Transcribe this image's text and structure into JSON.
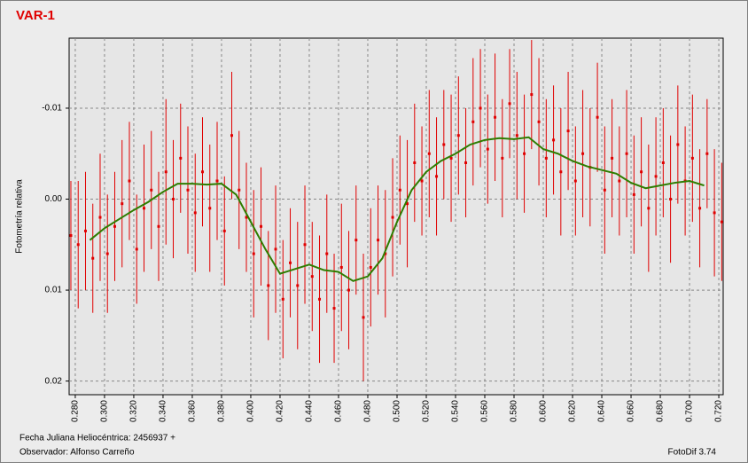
{
  "chart_data": {
    "type": "scatter",
    "title": "VAR-1",
    "y_label": "Fotometría relativa",
    "color": "#e00000",
    "grid": true,
    "x": [
      0.277,
      0.282,
      0.287,
      0.292,
      0.297,
      0.302,
      0.307,
      0.312,
      0.317,
      0.322,
      0.327,
      0.332,
      0.337,
      0.342,
      0.347,
      0.352,
      0.357,
      0.362,
      0.367,
      0.372,
      0.377,
      0.382,
      0.387,
      0.392,
      0.397,
      0.402,
      0.407,
      0.412,
      0.417,
      0.422,
      0.427,
      0.432,
      0.437,
      0.442,
      0.447,
      0.452,
      0.457,
      0.462,
      0.467,
      0.472,
      0.477,
      0.482,
      0.487,
      0.492,
      0.497,
      0.502,
      0.507,
      0.512,
      0.517,
      0.522,
      0.527,
      0.532,
      0.537,
      0.542,
      0.547,
      0.552,
      0.557,
      0.562,
      0.567,
      0.572,
      0.577,
      0.582,
      0.587,
      0.592,
      0.597,
      0.602,
      0.607,
      0.612,
      0.617,
      0.622,
      0.627,
      0.632,
      0.637,
      0.642,
      0.647,
      0.652,
      0.657,
      0.662,
      0.667,
      0.672,
      0.677,
      0.682,
      0.687,
      0.692,
      0.697,
      0.702,
      0.707,
      0.712,
      0.717,
      0.722
    ],
    "values": [
      0.004,
      0.005,
      0.0035,
      0.0065,
      0.002,
      0.006,
      0.003,
      0.0005,
      -0.002,
      0.0055,
      0.001,
      -0.001,
      0.003,
      -0.003,
      0.0,
      -0.0045,
      -0.001,
      0.0015,
      -0.003,
      0.001,
      -0.002,
      0.0035,
      -0.007,
      -0.001,
      0.002,
      0.006,
      0.003,
      0.0095,
      0.0055,
      0.011,
      0.007,
      0.0095,
      0.005,
      0.0085,
      0.011,
      0.006,
      0.012,
      0.0075,
      0.01,
      0.0045,
      0.013,
      0.0075,
      0.0045,
      0.006,
      0.002,
      -0.001,
      0.0005,
      -0.004,
      -0.002,
      -0.005,
      -0.0025,
      -0.006,
      -0.0045,
      -0.007,
      -0.004,
      -0.0085,
      -0.01,
      -0.0055,
      -0.009,
      -0.0045,
      -0.0105,
      -0.007,
      -0.005,
      -0.0115,
      -0.0085,
      -0.0045,
      -0.0065,
      -0.003,
      -0.0075,
      -0.002,
      -0.005,
      -0.0035,
      -0.009,
      -0.001,
      -0.0045,
      -0.002,
      -0.005,
      -0.0005,
      -0.003,
      0.001,
      -0.0025,
      -0.004,
      0.0,
      -0.006,
      -0.002,
      -0.0045,
      0.001,
      -0.005,
      0.0015,
      0.0025
    ],
    "errors": [
      0.006,
      0.007,
      0.0065,
      0.006,
      0.007,
      0.0065,
      0.006,
      0.007,
      0.0065,
      0.006,
      0.007,
      0.0065,
      0.006,
      0.008,
      0.0065,
      0.006,
      0.007,
      0.0065,
      0.006,
      0.007,
      0.0065,
      0.006,
      0.007,
      0.0065,
      0.006,
      0.007,
      0.0065,
      0.006,
      0.007,
      0.0065,
      0.006,
      0.007,
      0.0065,
      0.006,
      0.007,
      0.0065,
      0.006,
      0.007,
      0.0065,
      0.006,
      0.007,
      0.0065,
      0.006,
      0.007,
      0.0065,
      0.006,
      0.007,
      0.0065,
      0.006,
      0.007,
      0.0065,
      0.006,
      0.007,
      0.0065,
      0.006,
      0.007,
      0.0065,
      0.006,
      0.007,
      0.0065,
      0.006,
      0.007,
      0.0065,
      0.006,
      0.007,
      0.0065,
      0.006,
      0.007,
      0.0065,
      0.006,
      0.007,
      0.0065,
      0.006,
      0.007,
      0.0065,
      0.006,
      0.007,
      0.0065,
      0.006,
      0.007,
      0.0065,
      0.006,
      0.007,
      0.0065,
      0.006,
      0.007,
      0.0065,
      0.006,
      0.007,
      0.0065
    ],
    "line": {
      "color": "#2e7d00",
      "x": [
        0.29,
        0.3,
        0.31,
        0.32,
        0.33,
        0.34,
        0.35,
        0.36,
        0.37,
        0.38,
        0.39,
        0.4,
        0.41,
        0.42,
        0.43,
        0.44,
        0.45,
        0.46,
        0.47,
        0.48,
        0.49,
        0.5,
        0.51,
        0.52,
        0.53,
        0.54,
        0.55,
        0.56,
        0.57,
        0.58,
        0.59,
        0.6,
        0.61,
        0.62,
        0.63,
        0.64,
        0.65,
        0.66,
        0.67,
        0.68,
        0.69,
        0.7,
        0.71
      ],
      "values": [
        0.0045,
        0.0032,
        0.0022,
        0.0012,
        0.0003,
        -0.0008,
        -0.0017,
        -0.0017,
        -0.0016,
        -0.0017,
        -0.0005,
        0.0025,
        0.0055,
        0.0082,
        0.0077,
        0.0072,
        0.0078,
        0.008,
        0.009,
        0.0085,
        0.0065,
        0.0025,
        -0.001,
        -0.003,
        -0.0042,
        -0.005,
        -0.006,
        -0.0065,
        -0.0067,
        -0.0066,
        -0.0068,
        -0.0055,
        -0.005,
        -0.0042,
        -0.0036,
        -0.0032,
        -0.0028,
        -0.0018,
        -0.0012,
        -0.0015,
        -0.0018,
        -0.002,
        -0.0015
      ]
    },
    "xlim": [
      0.2758,
      0.723
    ],
    "ylim": [
      0.0215,
      -0.0177
    ],
    "xticks": [
      {
        "value": 0.28,
        "label": "0.280"
      },
      {
        "value": 0.3,
        "label": "0.300"
      },
      {
        "value": 0.32,
        "label": "0.320"
      },
      {
        "value": 0.34,
        "label": "0.340"
      },
      {
        "value": 0.36,
        "label": "0.360"
      },
      {
        "value": 0.38,
        "label": "0.380"
      },
      {
        "value": 0.4,
        "label": "0.400"
      },
      {
        "value": 0.42,
        "label": "0.420"
      },
      {
        "value": 0.44,
        "label": "0.440"
      },
      {
        "value": 0.46,
        "label": "0.460"
      },
      {
        "value": 0.48,
        "label": "0.480"
      },
      {
        "value": 0.5,
        "label": "0.500"
      },
      {
        "value": 0.52,
        "label": "0.520"
      },
      {
        "value": 0.54,
        "label": "0.540"
      },
      {
        "value": 0.56,
        "label": "0.560"
      },
      {
        "value": 0.58,
        "label": "0.580"
      },
      {
        "value": 0.6,
        "label": "0.600"
      },
      {
        "value": 0.62,
        "label": "0.620"
      },
      {
        "value": 0.64,
        "label": "0.640"
      },
      {
        "value": 0.66,
        "label": "0.660"
      },
      {
        "value": 0.68,
        "label": "0.680"
      },
      {
        "value": 0.7,
        "label": "0.700"
      },
      {
        "value": 0.72,
        "label": "0.720"
      }
    ],
    "yticks": [
      -0.01,
      {
        "value": 0,
        "label": "0.00"
      },
      0.01,
      0.02
    ]
  },
  "footer": {
    "date": "Fecha Juliana Heliocéntrica: 2456937 +",
    "observer": "Observador: Alfonso Carreño",
    "software": "FotoDif 3.74"
  }
}
